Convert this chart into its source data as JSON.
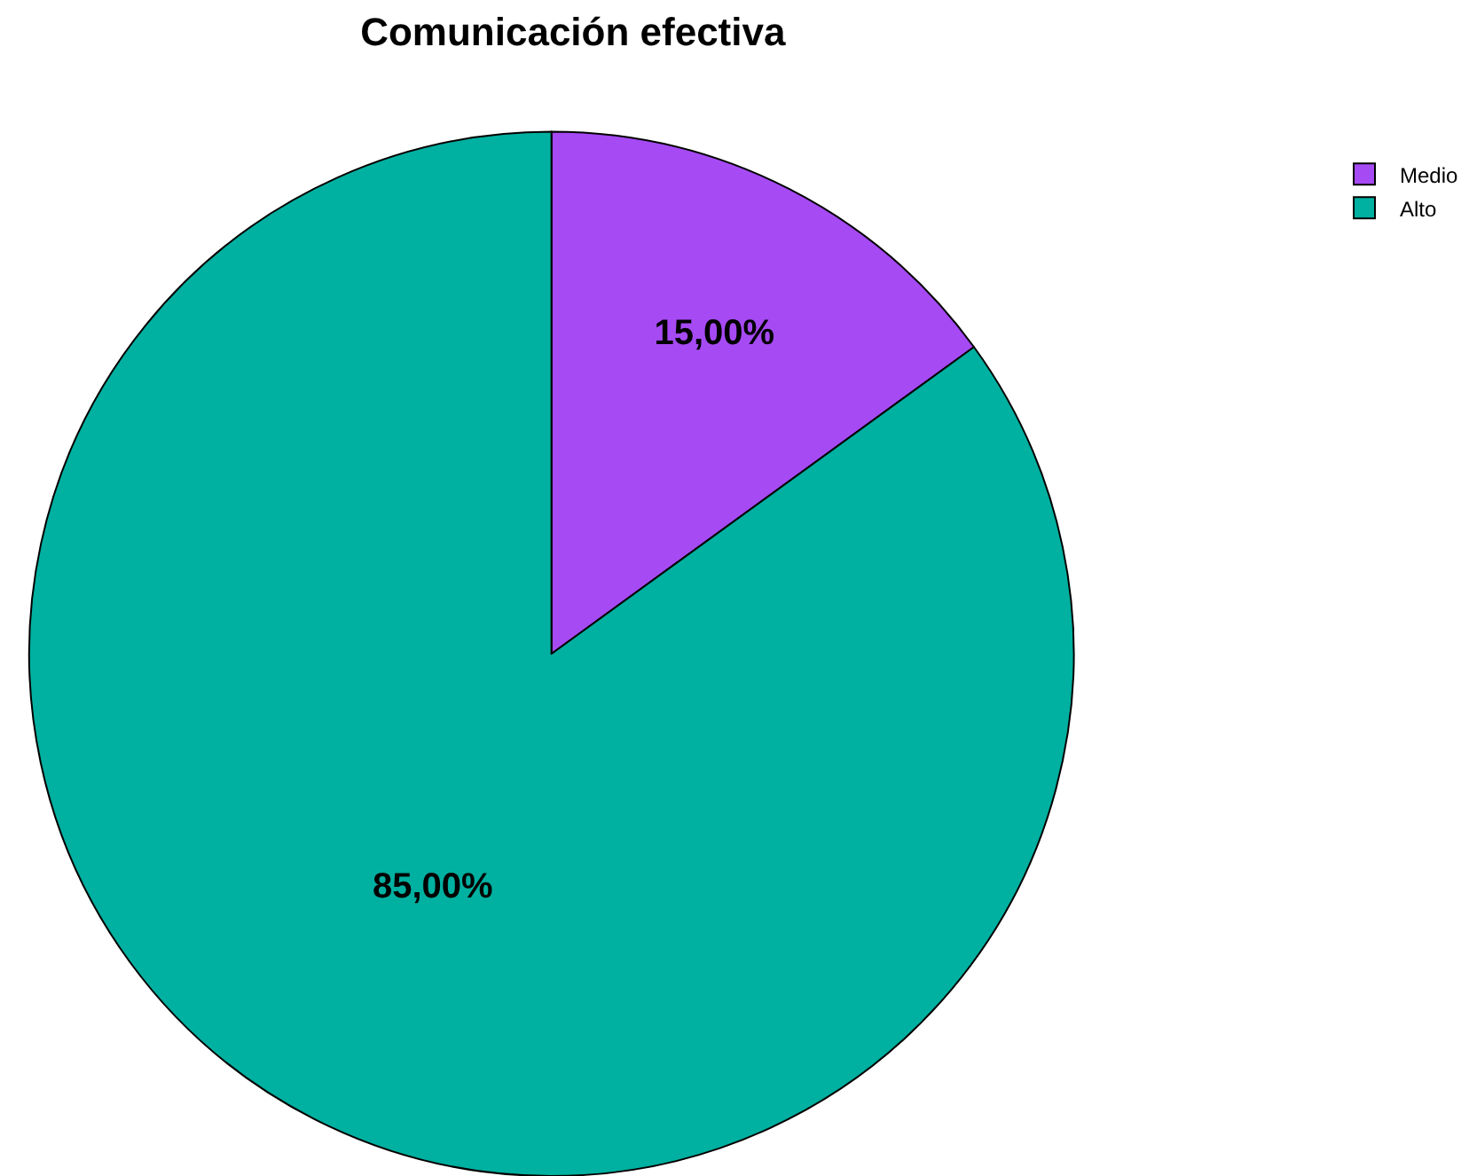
{
  "chart_data": {
    "type": "pie",
    "title": "Comunicación efectiva",
    "categories": [
      "Medio",
      "Alto"
    ],
    "values": [
      15,
      85
    ],
    "colors": [
      "#a64af4",
      "#00b0a0"
    ],
    "value_labels": [
      "15,00%",
      "85,00%"
    ],
    "legend": "top right"
  }
}
